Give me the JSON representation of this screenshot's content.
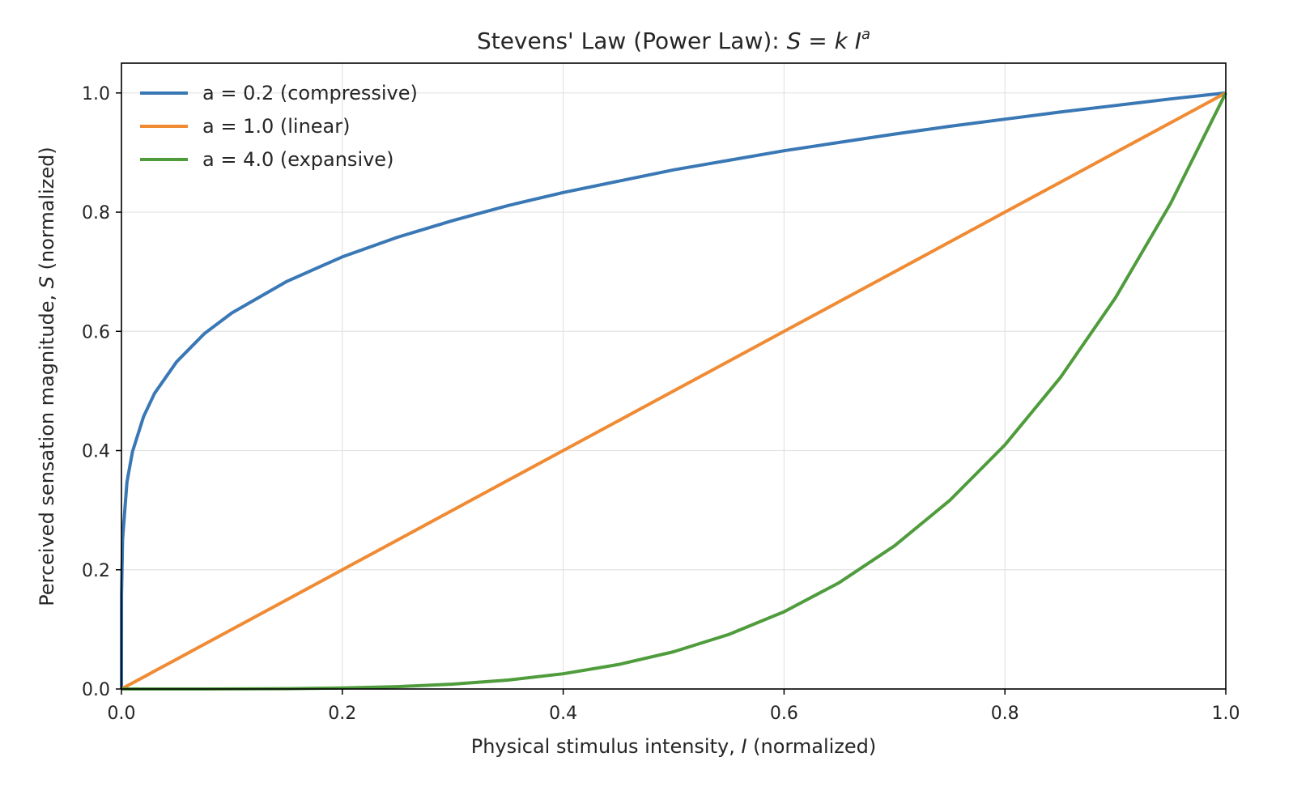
{
  "chart_data": {
    "type": "line",
    "title": "Stevens' Law (Power Law): ",
    "title_math": "S = k I",
    "title_sup": "a",
    "xlabel_prefix": "Physical stimulus intensity, ",
    "xlabel_var": "I",
    "xlabel_suffix": " (normalized)",
    "ylabel_prefix": "Perceived sensation magnitude, ",
    "ylabel_var": "S",
    "ylabel_suffix": " (normalized)",
    "xlim": [
      0,
      1.0
    ],
    "ylim": [
      0,
      1.05
    ],
    "xticks": [
      "0.0",
      "0.2",
      "0.4",
      "0.6",
      "0.8",
      "1.0"
    ],
    "yticks": [
      "0.0",
      "0.2",
      "0.4",
      "0.6",
      "0.8",
      "1.0"
    ],
    "grid": true,
    "legend_position": "top-left",
    "x": [
      0,
      0.0001,
      0.001,
      0.005,
      0.01,
      0.02,
      0.03,
      0.05,
      0.075,
      0.1,
      0.15,
      0.2,
      0.25,
      0.3,
      0.35,
      0.4,
      0.45,
      0.5,
      0.55,
      0.6,
      0.65,
      0.7,
      0.75,
      0.8,
      0.85,
      0.9,
      0.95,
      1.0
    ],
    "series": [
      {
        "name": "a = 0.2 (compressive)",
        "color": "#3a78b5",
        "values": [
          0,
          0.158,
          0.251,
          0.347,
          0.398,
          0.457,
          0.496,
          0.549,
          0.596,
          0.631,
          0.684,
          0.725,
          0.758,
          0.786,
          0.811,
          0.833,
          0.852,
          0.871,
          0.887,
          0.903,
          0.917,
          0.931,
          0.944,
          0.956,
          0.968,
          0.979,
          0.99,
          1.0
        ]
      },
      {
        "name": "a = 1.0 (linear)",
        "color": "#f08a33",
        "values": [
          0,
          0.0001,
          0.001,
          0.005,
          0.01,
          0.02,
          0.03,
          0.05,
          0.075,
          0.1,
          0.15,
          0.2,
          0.25,
          0.3,
          0.35,
          0.4,
          0.45,
          0.5,
          0.55,
          0.6,
          0.65,
          0.7,
          0.75,
          0.8,
          0.85,
          0.9,
          0.95,
          1.0
        ]
      },
      {
        "name": "a = 4.0 (expansive)",
        "color": "#4f9c3c",
        "values": [
          0,
          0,
          0,
          0,
          0,
          0,
          0,
          0,
          3e-05,
          0.0001,
          0.0005,
          0.0016,
          0.0039,
          0.0081,
          0.015,
          0.0256,
          0.041,
          0.0625,
          0.0915,
          0.1296,
          0.1785,
          0.2401,
          0.3164,
          0.4096,
          0.522,
          0.6561,
          0.8145,
          1.0
        ]
      }
    ]
  }
}
